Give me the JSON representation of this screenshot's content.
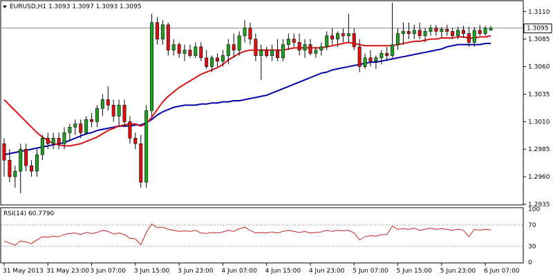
{
  "window": {
    "symbol_line": "EURUSD,H1  1.3093 1.3097 1.3093 1.3095",
    "menu_arrow": "triangle-down-icon"
  },
  "rsi_panel": {
    "label": "RSI(14) 60.7790"
  },
  "colors": {
    "bull": "#22a022",
    "bear": "#dd1111",
    "wick": "#000000",
    "ma_fast": "#dd1111",
    "ma_slow": "#0000aa",
    "rsi": "#cc2222",
    "grid": "#000000",
    "current_line": "#888888"
  },
  "chart_data": [
    {
      "type": "candlestick",
      "title": "EURUSD,H1  1.3093 1.3097 1.3093 1.3095",
      "ylim": [
        1.2935,
        1.3118
      ],
      "y_ticks": [
        1.311,
        1.3085,
        1.306,
        1.3035,
        1.301,
        1.2985,
        1.296,
        1.2935
      ],
      "y_tick_labels": [
        "1.3110",
        "1.3085",
        "1.3060",
        "1.3035",
        "1.3010",
        "1.2985",
        "1.2960",
        "1.2935"
      ],
      "current_price": 1.3095,
      "current_price_label": "1.3095",
      "x_tick_labels": [
        {
          "i": 0,
          "label": "31 May 2013"
        },
        {
          "i": 8,
          "label": "31 May 23:00"
        },
        {
          "i": 16,
          "label": "3 Jun 07:00"
        },
        {
          "i": 24,
          "label": "3 Jun 15:00"
        },
        {
          "i": 32,
          "label": "3 Jun 23:00"
        },
        {
          "i": 40,
          "label": "4 Jun 07:00"
        },
        {
          "i": 48,
          "label": "4 Jun 15:00"
        },
        {
          "i": 56,
          "label": "4 Jun 23:00"
        },
        {
          "i": 64,
          "label": "5 Jun 07:00"
        },
        {
          "i": 72,
          "label": "5 Jun 15:00"
        },
        {
          "i": 80,
          "label": "5 Jun 23:00"
        },
        {
          "i": 88,
          "label": "6 Jun 07:00"
        }
      ],
      "candles": [
        [
          1.299,
          1.2995,
          1.296,
          1.2975
        ],
        [
          1.2975,
          1.2985,
          1.2955,
          1.296
        ],
        [
          1.296,
          1.297,
          1.295,
          1.2965
        ],
        [
          1.2965,
          1.299,
          1.2945,
          1.2985
        ],
        [
          1.2985,
          1.299,
          1.2965,
          1.297
        ],
        [
          1.297,
          1.2975,
          1.296,
          1.2965
        ],
        [
          1.2965,
          1.2985,
          1.296,
          1.298
        ],
        [
          1.298,
          1.2998,
          1.2975,
          1.2995
        ],
        [
          1.2995,
          1.3,
          1.2985,
          1.299
        ],
        [
          1.299,
          1.3,
          1.2985,
          1.2995
        ],
        [
          1.2995,
          1.3,
          1.2985,
          1.299
        ],
        [
          1.299,
          1.3005,
          1.2985,
          1.3
        ],
        [
          1.3,
          1.3008,
          1.2992,
          1.3005
        ],
        [
          1.3005,
          1.3012,
          1.2998,
          1.3008
        ],
        [
          1.3008,
          1.3012,
          1.2995,
          1.3
        ],
        [
          1.3,
          1.3015,
          1.2998,
          1.3012
        ],
        [
          1.3012,
          1.3018,
          1.3005,
          1.301
        ],
        [
          1.301,
          1.3025,
          1.3005,
          1.3022
        ],
        [
          1.3022,
          1.3035,
          1.3015,
          1.303
        ],
        [
          1.303,
          1.3042,
          1.302,
          1.3025
        ],
        [
          1.3025,
          1.303,
          1.301,
          1.3015
        ],
        [
          1.3015,
          1.303,
          1.3005,
          1.3025
        ],
        [
          1.3025,
          1.303,
          1.3005,
          1.301
        ],
        [
          1.301,
          1.3015,
          1.299,
          1.2995
        ],
        [
          1.2995,
          1.3,
          1.2985,
          1.299
        ],
        [
          1.299,
          1.2998,
          1.295,
          1.2955
        ],
        [
          1.2955,
          1.3025,
          1.295,
          1.302
        ],
        [
          1.302,
          1.3108,
          1.3015,
          1.31
        ],
        [
          1.31,
          1.3105,
          1.308,
          1.3085
        ],
        [
          1.3085,
          1.3102,
          1.308,
          1.3098
        ],
        [
          1.3098,
          1.31,
          1.307,
          1.3075
        ],
        [
          1.3075,
          1.3085,
          1.307,
          1.308
        ],
        [
          1.308,
          1.3082,
          1.3068,
          1.3072
        ],
        [
          1.3072,
          1.308,
          1.3065,
          1.3075
        ],
        [
          1.3075,
          1.308,
          1.3068,
          1.307
        ],
        [
          1.307,
          1.3082,
          1.3068,
          1.3078
        ],
        [
          1.3078,
          1.3082,
          1.3065,
          1.3068
        ],
        [
          1.3068,
          1.3075,
          1.3058,
          1.306
        ],
        [
          1.306,
          1.307,
          1.3055,
          1.3068
        ],
        [
          1.3068,
          1.3072,
          1.306,
          1.3065
        ],
        [
          1.3065,
          1.3075,
          1.306,
          1.307
        ],
        [
          1.307,
          1.3085,
          1.3062,
          1.308
        ],
        [
          1.308,
          1.309,
          1.3068,
          1.3075
        ],
        [
          1.3075,
          1.3092,
          1.307,
          1.3088
        ],
        [
          1.3088,
          1.3102,
          1.3082,
          1.3095
        ],
        [
          1.3095,
          1.31,
          1.308,
          1.3085
        ],
        [
          1.3085,
          1.309,
          1.3065,
          1.307
        ],
        [
          1.307,
          1.308,
          1.3048,
          1.3075
        ],
        [
          1.3075,
          1.3078,
          1.3068,
          1.307
        ],
        [
          1.307,
          1.308,
          1.3065,
          1.3075
        ],
        [
          1.3075,
          1.3085,
          1.3065,
          1.3068
        ],
        [
          1.3068,
          1.3085,
          1.3065,
          1.308
        ],
        [
          1.308,
          1.309,
          1.3075,
          1.3085
        ],
        [
          1.3085,
          1.309,
          1.3078,
          1.3082
        ],
        [
          1.3082,
          1.309,
          1.307,
          1.3075
        ],
        [
          1.3075,
          1.3085,
          1.3068,
          1.308
        ],
        [
          1.308,
          1.3085,
          1.307,
          1.3072
        ],
        [
          1.3072,
          1.3078,
          1.3068,
          1.3075
        ],
        [
          1.3075,
          1.3082,
          1.307,
          1.3078
        ],
        [
          1.3078,
          1.3092,
          1.3075,
          1.3088
        ],
        [
          1.3088,
          1.3095,
          1.308,
          1.3085
        ],
        [
          1.3085,
          1.3092,
          1.3078,
          1.309
        ],
        [
          1.309,
          1.3095,
          1.3082,
          1.3088
        ],
        [
          1.3088,
          1.3108,
          1.3082,
          1.309
        ],
        [
          1.309,
          1.3095,
          1.3075,
          1.3078
        ],
        [
          1.3078,
          1.3085,
          1.3055,
          1.306
        ],
        [
          1.306,
          1.3072,
          1.3058,
          1.3068
        ],
        [
          1.3068,
          1.3075,
          1.306,
          1.3065
        ],
        [
          1.3065,
          1.307,
          1.3058,
          1.3068
        ],
        [
          1.3068,
          1.3075,
          1.3062,
          1.3072
        ],
        [
          1.3072,
          1.3078,
          1.3065,
          1.307
        ],
        [
          1.307,
          1.3118,
          1.3068,
          1.308
        ],
        [
          1.308,
          1.3095,
          1.3075,
          1.309
        ],
        [
          1.309,
          1.31,
          1.308,
          1.3092
        ],
        [
          1.3092,
          1.31,
          1.3085,
          1.309
        ],
        [
          1.309,
          1.3098,
          1.3085,
          1.3093
        ],
        [
          1.3093,
          1.31,
          1.3085,
          1.3088
        ],
        [
          1.3088,
          1.3095,
          1.3082,
          1.3092
        ],
        [
          1.3092,
          1.3098,
          1.3088,
          1.3095
        ],
        [
          1.3095,
          1.3098,
          1.3088,
          1.3092
        ],
        [
          1.3092,
          1.3096,
          1.3086,
          1.3094
        ],
        [
          1.3094,
          1.3098,
          1.3088,
          1.3092
        ],
        [
          1.3092,
          1.3095,
          1.3085,
          1.3088
        ],
        [
          1.3088,
          1.3096,
          1.3085,
          1.3093
        ],
        [
          1.3093,
          1.3097,
          1.3086,
          1.309
        ],
        [
          1.309,
          1.3096,
          1.3078,
          1.3082
        ],
        [
          1.3082,
          1.3096,
          1.3078,
          1.3093
        ],
        [
          1.3093,
          1.3098,
          1.3088,
          1.309
        ],
        [
          1.309,
          1.3097,
          1.3088,
          1.3095
        ],
        [
          1.3093,
          1.3097,
          1.3093,
          1.3095
        ]
      ],
      "ma_fast": [
        1.303,
        1.3025,
        1.302,
        1.3015,
        1.301,
        1.3005,
        1.3,
        1.2996,
        1.2993,
        1.299,
        1.2989,
        1.2988,
        1.2988,
        1.2989,
        1.299,
        1.2992,
        1.2994,
        1.2996,
        1.2999,
        1.3002,
        1.3004,
        1.3006,
        1.3007,
        1.3008,
        1.3008,
        1.3006,
        1.3008,
        1.3014,
        1.3021,
        1.3028,
        1.3033,
        1.3037,
        1.3041,
        1.3044,
        1.3047,
        1.305,
        1.3053,
        1.3055,
        1.3057,
        1.3059,
        1.3062,
        1.3066,
        1.3069,
        1.3072,
        1.3074,
        1.3075,
        1.3075,
        1.3075,
        1.3075,
        1.3075,
        1.3075,
        1.3075,
        1.3076,
        1.3077,
        1.3077,
        1.3077,
        1.3077,
        1.3077,
        1.3077,
        1.3078,
        1.3079,
        1.308,
        1.3081,
        1.3082,
        1.3081,
        1.308,
        1.3079,
        1.3079,
        1.3079,
        1.3079,
        1.3079,
        1.3079,
        1.308,
        1.3081,
        1.3082,
        1.3083,
        1.3083,
        1.3084,
        1.3085,
        1.3085,
        1.3086,
        1.3086,
        1.3086,
        1.3087,
        1.3087,
        1.3086,
        1.3086,
        1.3087,
        1.3087,
        1.3088
      ],
      "ma_slow": [
        1.298,
        1.2981,
        1.2982,
        1.2983,
        1.2984,
        1.2985,
        1.2986,
        1.2987,
        1.2988,
        1.2989,
        1.299,
        1.2991,
        1.2993,
        1.2995,
        1.2997,
        1.2999,
        1.3,
        1.3002,
        1.3003,
        1.3004,
        1.3005,
        1.3006,
        1.3006,
        1.3006,
        1.3007,
        1.3007,
        1.3009,
        1.3012,
        1.3016,
        1.3019,
        1.3021,
        1.3023,
        1.3024,
        1.3025,
        1.3025,
        1.3025,
        1.3026,
        1.3026,
        1.3027,
        1.3027,
        1.3028,
        1.3028,
        1.3029,
        1.3029,
        1.303,
        1.3031,
        1.3032,
        1.3033,
        1.3034,
        1.3036,
        1.3038,
        1.304,
        1.3042,
        1.3044,
        1.3046,
        1.3048,
        1.305,
        1.3052,
        1.3054,
        1.3055,
        1.3057,
        1.3058,
        1.3059,
        1.306,
        1.3061,
        1.3062,
        1.3063,
        1.3064,
        1.3064,
        1.3065,
        1.3066,
        1.3067,
        1.3068,
        1.3069,
        1.307,
        1.3071,
        1.3072,
        1.3073,
        1.3074,
        1.3075,
        1.3076,
        1.3078,
        1.3079,
        1.308,
        1.308,
        1.308,
        1.308,
        1.308,
        1.3081,
        1.3081
      ]
    },
    {
      "type": "line",
      "title": "RSI(14) 60.7790",
      "ylim": [
        0,
        100
      ],
      "y_ticks": [
        100,
        70,
        30,
        0
      ],
      "y_tick_labels": [
        "100",
        "70",
        "30",
        "0"
      ],
      "levels": [
        70,
        30
      ],
      "values": [
        40,
        36,
        32,
        40,
        38,
        35,
        42,
        48,
        47,
        49,
        48,
        52,
        54,
        55,
        52,
        56,
        54,
        56,
        60,
        58,
        53,
        55,
        52,
        45,
        44,
        33,
        56,
        72,
        65,
        66,
        62,
        60,
        58,
        59,
        58,
        60,
        55,
        54,
        56,
        55,
        57,
        60,
        58,
        63,
        66,
        60,
        55,
        56,
        55,
        57,
        55,
        58,
        60,
        58,
        56,
        58,
        55,
        56,
        57,
        60,
        58,
        60,
        59,
        60,
        55,
        42,
        48,
        50,
        49,
        52,
        52,
        68,
        62,
        63,
        62,
        64,
        60,
        62,
        64,
        62,
        63,
        62,
        60,
        62,
        60,
        48,
        62,
        60,
        62,
        61
      ]
    }
  ]
}
